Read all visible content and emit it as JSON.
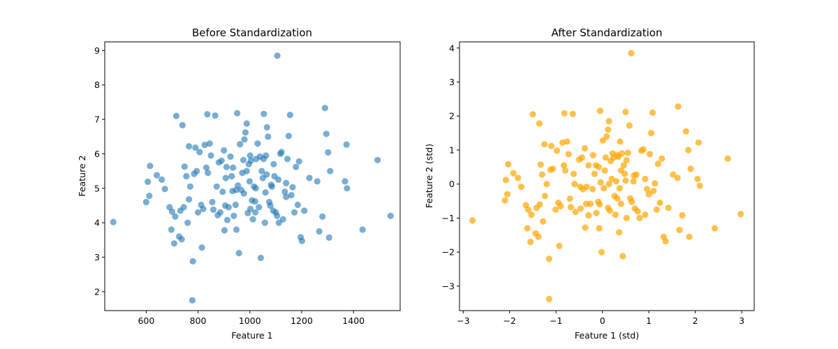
{
  "chart_data": [
    {
      "type": "scatter",
      "title": "Before Standardization",
      "xlabel": "Feature 1",
      "ylabel": "Feature 2",
      "xlim": [
        440,
        1580
      ],
      "ylim": [
        1.45,
        9.25
      ],
      "xticks": [
        600,
        800,
        1000,
        1200,
        1400
      ],
      "yticks": [
        2,
        3,
        4,
        5,
        6,
        7,
        8,
        9
      ],
      "color": "#1f77b4",
      "opacity": 0.6,
      "grid": false,
      "points": [
        [
          473,
          4.02
        ],
        [
          1543,
          4.2
        ],
        [
          1106,
          8.85
        ],
        [
          778,
          1.75
        ],
        [
          1435,
          3.8
        ],
        [
          1493,
          5.82
        ],
        [
          1373,
          6.27
        ],
        [
          1290,
          7.33
        ],
        [
          600,
          4.6
        ],
        [
          612,
          4.78
        ],
        [
          615,
          5.65
        ],
        [
          606,
          5.19
        ],
        [
          641,
          5.38
        ],
        [
          660,
          5.25
        ],
        [
          672,
          4.98
        ],
        [
          690,
          4.45
        ],
        [
          700,
          4.32
        ],
        [
          697,
          3.8
        ],
        [
          712,
          4.18
        ],
        [
          708,
          3.4
        ],
        [
          716,
          7.1
        ],
        [
          740,
          6.83
        ],
        [
          737,
          3.52
        ],
        [
          727,
          3.6
        ],
        [
          732,
          4.35
        ],
        [
          745,
          4.45
        ],
        [
          748,
          5.63
        ],
        [
          755,
          5.35
        ],
        [
          765,
          6.22
        ],
        [
          760,
          4.0
        ],
        [
          765,
          4.68
        ],
        [
          770,
          5.05
        ],
        [
          780,
          2.88
        ],
        [
          785,
          5.42
        ],
        [
          790,
          6.18
        ],
        [
          795,
          5.5
        ],
        [
          800,
          4.3
        ],
        [
          806,
          6.05
        ],
        [
          812,
          4.52
        ],
        [
          815,
          3.28
        ],
        [
          820,
          4.4
        ],
        [
          826,
          6.26
        ],
        [
          832,
          5.6
        ],
        [
          838,
          5.45
        ],
        [
          836,
          7.15
        ],
        [
          845,
          6.3
        ],
        [
          850,
          5.95
        ],
        [
          855,
          4.6
        ],
        [
          859,
          4.38
        ],
        [
          866,
          7.11
        ],
        [
          872,
          5.05
        ],
        [
          876,
          4.22
        ],
        [
          880,
          5.75
        ],
        [
          886,
          4.3
        ],
        [
          891,
          5.8
        ],
        [
          895,
          4.9
        ],
        [
          900,
          6.1
        ],
        [
          902,
          3.78
        ],
        [
          905,
          4.5
        ],
        [
          910,
          5.62
        ],
        [
          913,
          4.08
        ],
        [
          918,
          4.45
        ],
        [
          925,
          5.92
        ],
        [
          930,
          5.35
        ],
        [
          935,
          5.6
        ],
        [
          938,
          4.2
        ],
        [
          945,
          4.52
        ],
        [
          948,
          3.8
        ],
        [
          951,
          7.18
        ],
        [
          954,
          5.08
        ],
        [
          958,
          3.12
        ],
        [
          962,
          6.28
        ],
        [
          967,
          4.95
        ],
        [
          971,
          5.45
        ],
        [
          975,
          5.82
        ],
        [
          979,
          6.42
        ],
        [
          983,
          6.62
        ],
        [
          988,
          6.88
        ],
        [
          992,
          4.28
        ],
        [
          996,
          5.7
        ],
        [
          999,
          5.2
        ],
        [
          1001,
          5.95
        ],
        [
          1004,
          5.8
        ],
        [
          1008,
          4.65
        ],
        [
          1012,
          4.1
        ],
        [
          1016,
          5.05
        ],
        [
          1020,
          4.62
        ],
        [
          1024,
          5.85
        ],
        [
          1030,
          6.3
        ],
        [
          1035,
          4.45
        ],
        [
          1039,
          5.92
        ],
        [
          1042,
          2.98
        ],
        [
          1046,
          5.5
        ],
        [
          1050,
          5.3
        ],
        [
          1054,
          7.16
        ],
        [
          1058,
          4.0
        ],
        [
          1062,
          5.95
        ],
        [
          1066,
          6.77
        ],
        [
          1070,
          6.5
        ],
        [
          1075,
          4.6
        ],
        [
          1079,
          4.5
        ],
        [
          1085,
          5.05
        ],
        [
          1090,
          4.35
        ],
        [
          1095,
          5.35
        ],
        [
          1100,
          4.3
        ],
        [
          1105,
          4.2
        ],
        [
          1112,
          4.0
        ],
        [
          1118,
          6.0
        ],
        [
          1122,
          6.05
        ],
        [
          1128,
          4.1
        ],
        [
          1135,
          4.9
        ],
        [
          1140,
          4.75
        ],
        [
          1145,
          5.85
        ],
        [
          1150,
          6.52
        ],
        [
          1155,
          7.13
        ],
        [
          1160,
          4.8
        ],
        [
          1165,
          5.03
        ],
        [
          1172,
          4.3
        ],
        [
          1178,
          5.62
        ],
        [
          1185,
          4.52
        ],
        [
          1190,
          5.78
        ],
        [
          1196,
          3.58
        ],
        [
          1201,
          3.47
        ],
        [
          1210,
          4.35
        ],
        [
          1230,
          5.3
        ],
        [
          1260,
          5.2
        ],
        [
          1268,
          3.75
        ],
        [
          1280,
          4.18
        ],
        [
          1295,
          6.58
        ],
        [
          1302,
          6.04
        ],
        [
          1310,
          5.5
        ],
        [
          1306,
          3.57
        ],
        [
          1367,
          5.2
        ],
        [
          1375,
          5.0
        ],
        [
          947,
          4.95
        ],
        [
          988,
          5.5
        ],
        [
          1023,
          5.0
        ],
        [
          1053,
          5.85
        ],
        [
          1065,
          5.4
        ],
        [
          1110,
          5.25
        ],
        [
          977,
          4.85
        ],
        [
          1002,
          4.4
        ],
        [
          933,
          4.92
        ],
        [
          1092,
          5.7
        ],
        [
          1021,
          4.3
        ],
        [
          1060,
          4.88
        ],
        [
          1082,
          5.1
        ],
        [
          907,
          5.3
        ],
        [
          1140,
          5.15
        ]
      ]
    },
    {
      "type": "scatter",
      "title": "After Standardization",
      "xlabel": "Feature 1 (std)",
      "ylabel": "Feature 2 (std)",
      "xlim": [
        -3.08,
        3.27
      ],
      "ylim": [
        -3.72,
        4.18
      ],
      "xticks": [
        -3,
        -2,
        -1,
        0,
        1,
        2,
        3
      ],
      "yticks": [
        -3,
        -2,
        -1,
        0,
        1,
        2,
        3,
        4
      ],
      "color": "#ffa500",
      "opacity": 0.7,
      "grid": false,
      "points": [
        [
          -2.8,
          -1.07
        ],
        [
          2.98,
          -0.88
        ],
        [
          0.62,
          3.85
        ],
        [
          -1.15,
          -3.38
        ],
        [
          2.42,
          -1.3
        ],
        [
          2.7,
          0.75
        ],
        [
          2.07,
          1.22
        ],
        [
          1.63,
          2.28
        ],
        [
          -2.1,
          -0.48
        ],
        [
          -2.05,
          -0.3
        ],
        [
          -2.03,
          0.58
        ],
        [
          -2.08,
          0.12
        ],
        [
          -1.92,
          0.32
        ],
        [
          -1.82,
          0.18
        ],
        [
          -1.75,
          -0.08
        ],
        [
          -1.65,
          -0.62
        ],
        [
          -1.6,
          -0.75
        ],
        [
          -1.62,
          -1.3
        ],
        [
          -1.53,
          -0.9
        ],
        [
          -1.55,
          -1.7
        ],
        [
          -1.5,
          2.05
        ],
        [
          -1.36,
          1.78
        ],
        [
          -1.38,
          -1.55
        ],
        [
          -1.44,
          -1.45
        ],
        [
          -1.42,
          -0.7
        ],
        [
          -1.35,
          -0.6
        ],
        [
          -1.33,
          0.57
        ],
        [
          -1.3,
          0.28
        ],
        [
          -1.25,
          1.17
        ],
        [
          -1.28,
          -1.1
        ],
        [
          -1.24,
          -0.35
        ],
        [
          -1.2,
          0.0
        ],
        [
          -1.15,
          -2.2
        ],
        [
          -1.12,
          0.42
        ],
        [
          -1.1,
          1.12
        ],
        [
          -1.07,
          0.45
        ],
        [
          -1.01,
          -0.75
        ],
        [
          -0.98,
          0.98
        ],
        [
          -0.95,
          -0.55
        ],
        [
          -0.93,
          -1.82
        ],
        [
          -0.9,
          -0.65
        ],
        [
          -0.86,
          1.22
        ],
        [
          -0.83,
          0.55
        ],
        [
          -0.8,
          0.4
        ],
        [
          -0.82,
          2.08
        ],
        [
          -0.76,
          1.25
        ],
        [
          -0.73,
          0.88
        ],
        [
          -0.7,
          -0.43
        ],
        [
          -0.68,
          -0.68
        ],
        [
          -0.64,
          2.06
        ],
        [
          -0.6,
          0.0
        ],
        [
          -0.58,
          -0.82
        ],
        [
          -0.5,
          0.72
        ],
        [
          -0.47,
          -0.72
        ],
        [
          -0.44,
          0.78
        ],
        [
          -0.42,
          -0.15
        ],
        [
          -0.38,
          1.05
        ],
        [
          -0.37,
          -1.28
        ],
        [
          -0.35,
          -0.58
        ],
        [
          -0.3,
          0.55
        ],
        [
          -0.3,
          -0.92
        ],
        [
          -0.26,
          -0.58
        ],
        [
          -0.2,
          0.85
        ],
        [
          -0.17,
          0.3
        ],
        [
          -0.14,
          0.55
        ],
        [
          -0.13,
          -0.85
        ],
        [
          -0.09,
          -0.52
        ],
        [
          -0.07,
          -1.3
        ],
        [
          -0.05,
          2.15
        ],
        [
          -0.04,
          0.05
        ],
        [
          -0.02,
          -2.0
        ],
        [
          0.01,
          1.28
        ],
        [
          0.03,
          -0.12
        ],
        [
          0.05,
          0.4
        ],
        [
          0.07,
          0.78
        ],
        [
          0.09,
          1.4
        ],
        [
          0.12,
          1.6
        ],
        [
          0.14,
          1.85
        ],
        [
          0.16,
          -0.78
        ],
        [
          0.18,
          0.68
        ],
        [
          0.2,
          0.15
        ],
        [
          0.22,
          0.9
        ],
        [
          0.24,
          0.78
        ],
        [
          0.26,
          -0.35
        ],
        [
          0.28,
          -0.9
        ],
        [
          0.3,
          0.08
        ],
        [
          0.32,
          -0.42
        ],
        [
          0.34,
          0.8
        ],
        [
          0.36,
          -1.42
        ],
        [
          0.38,
          1.25
        ],
        [
          0.4,
          -0.58
        ],
        [
          0.42,
          0.9
        ],
        [
          0.44,
          -2.12
        ],
        [
          0.46,
          0.55
        ],
        [
          0.48,
          0.3
        ],
        [
          0.5,
          2.12
        ],
        [
          0.52,
          -1.0
        ],
        [
          0.55,
          0.92
        ],
        [
          0.58,
          1.72
        ],
        [
          0.6,
          -0.42
        ],
        [
          0.63,
          -0.52
        ],
        [
          0.67,
          0.08
        ],
        [
          0.7,
          -0.72
        ],
        [
          0.73,
          0.28
        ],
        [
          0.76,
          -0.8
        ],
        [
          0.8,
          -1.0
        ],
        [
          0.84,
          0.98
        ],
        [
          0.88,
          1.02
        ],
        [
          0.92,
          -0.9
        ],
        [
          0.96,
          -0.15
        ],
        [
          1.0,
          -0.3
        ],
        [
          1.02,
          0.88
        ],
        [
          1.05,
          1.5
        ],
        [
          1.08,
          2.1
        ],
        [
          1.1,
          -0.2
        ],
        [
          1.13,
          0.02
        ],
        [
          1.17,
          -0.75
        ],
        [
          1.2,
          0.6
        ],
        [
          1.24,
          -0.55
        ],
        [
          1.28,
          0.75
        ],
        [
          1.32,
          -1.55
        ],
        [
          1.36,
          -1.68
        ],
        [
          1.42,
          -0.7
        ],
        [
          1.52,
          0.28
        ],
        [
          1.62,
          0.18
        ],
        [
          1.66,
          -1.35
        ],
        [
          1.72,
          -0.92
        ],
        [
          1.8,
          1.55
        ],
        [
          1.85,
          1.0
        ],
        [
          1.9,
          0.45
        ],
        [
          1.87,
          -1.55
        ],
        [
          2.05,
          0.15
        ],
        [
          2.1,
          -0.05
        ],
        [
          -0.34,
          -0.08
        ],
        [
          -0.08,
          0.5
        ],
        [
          0.14,
          0.0
        ],
        [
          0.33,
          0.85
        ],
        [
          0.4,
          0.4
        ],
        [
          0.68,
          0.25
        ],
        [
          -0.21,
          -0.15
        ],
        [
          -0.06,
          -0.6
        ],
        [
          -0.48,
          -0.08
        ],
        [
          0.52,
          0.7
        ],
        [
          0.12,
          -0.7
        ],
        [
          0.37,
          -0.12
        ],
        [
          0.5,
          0.1
        ],
        [
          -0.62,
          0.3
        ],
        [
          0.92,
          0.15
        ]
      ]
    }
  ]
}
